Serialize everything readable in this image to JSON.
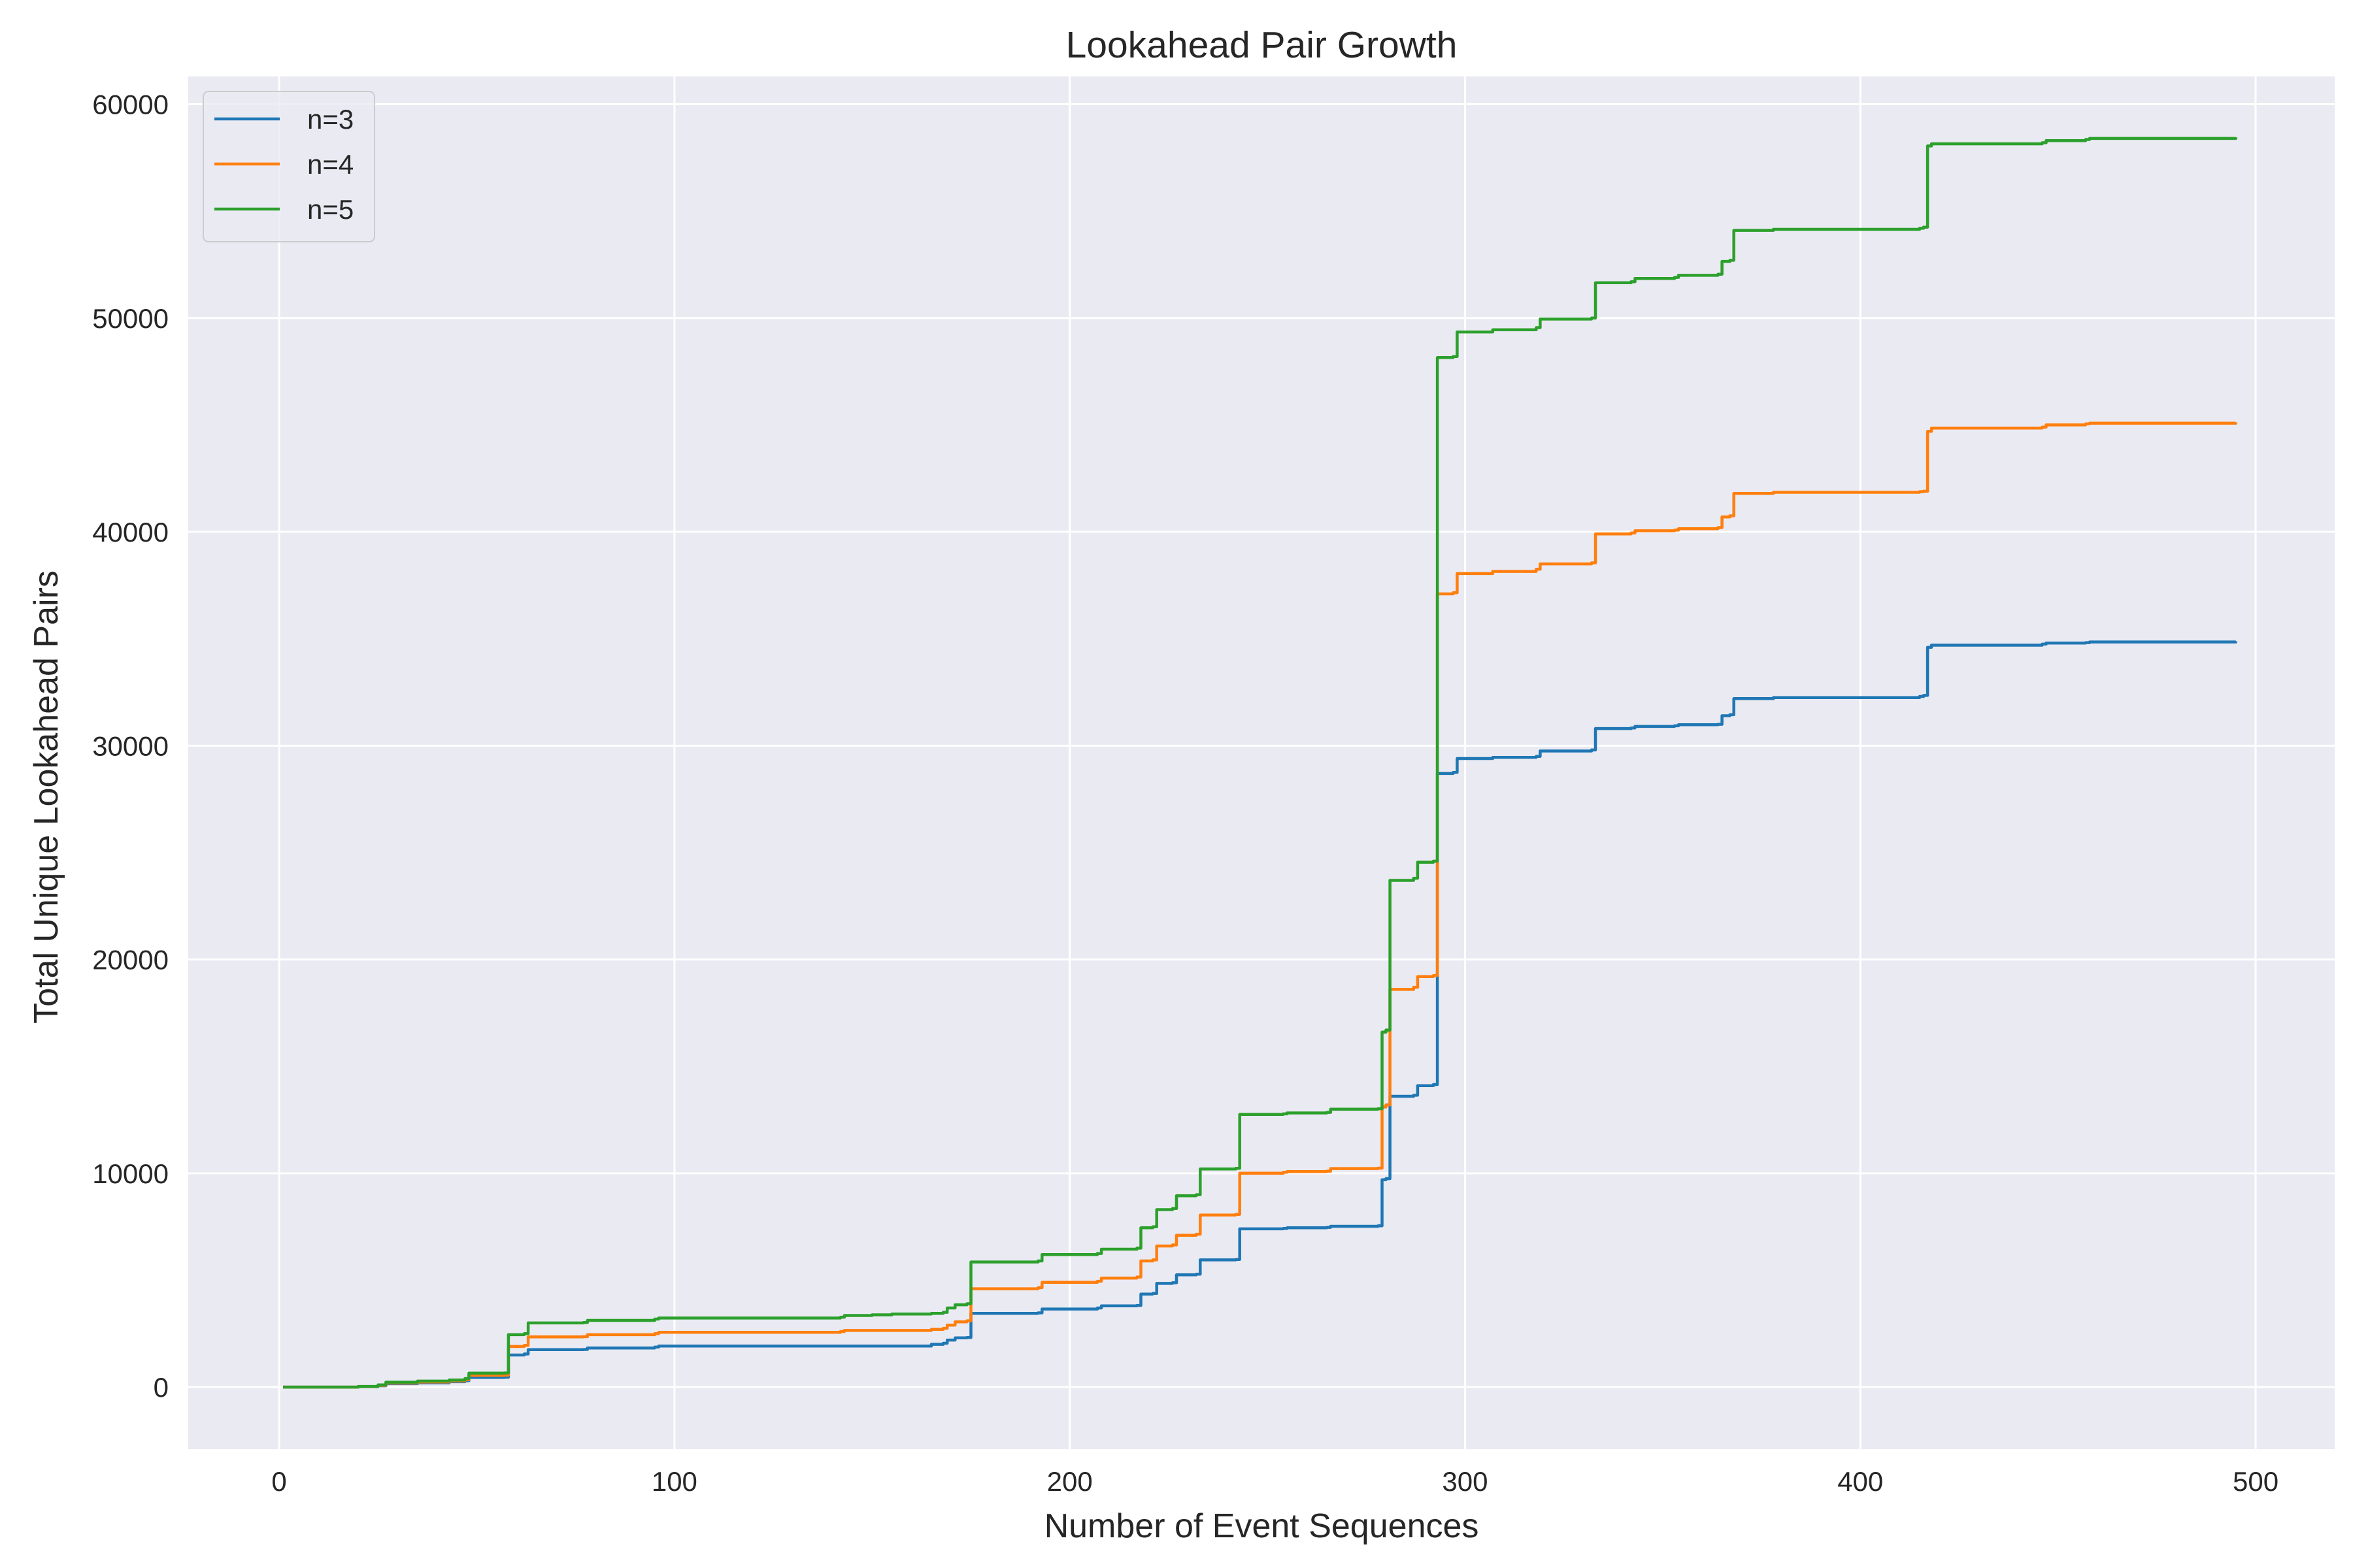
{
  "chart_data": {
    "type": "line",
    "title": "Lookahead Pair Growth",
    "xlabel": "Number of Event Sequences",
    "ylabel": "Total Unique Lookahead Pairs",
    "xlim": [
      -23,
      520
    ],
    "ylim": [
      -2900,
      61300
    ],
    "xticks": [
      0,
      100,
      200,
      300,
      400,
      500
    ],
    "yticks": [
      0,
      10000,
      20000,
      30000,
      40000,
      50000,
      60000
    ],
    "grid": true,
    "legend_position": "top-left",
    "colors": {
      "background": "#eaeaf2",
      "grid": "#ffffff"
    },
    "series": [
      {
        "name": "n=3",
        "color": "#1f77b4",
        "points": [
          [
            1,
            0
          ],
          [
            20,
            20
          ],
          [
            25,
            60
          ],
          [
            27,
            160
          ],
          [
            35,
            200
          ],
          [
            43,
            250
          ],
          [
            47,
            300
          ],
          [
            48,
            450
          ],
          [
            57,
            460
          ],
          [
            58,
            1500
          ],
          [
            62,
            1550
          ],
          [
            63,
            1750
          ],
          [
            77,
            1760
          ],
          [
            78,
            1830
          ],
          [
            95,
            1870
          ],
          [
            96,
            1920
          ],
          [
            165,
            2000
          ],
          [
            168,
            2050
          ],
          [
            169,
            2200
          ],
          [
            171,
            2300
          ],
          [
            174,
            2320
          ],
          [
            175,
            3450
          ],
          [
            192,
            3470
          ],
          [
            193,
            3650
          ],
          [
            207,
            3700
          ],
          [
            208,
            3800
          ],
          [
            217,
            3820
          ],
          [
            218,
            4350
          ],
          [
            221,
            4380
          ],
          [
            222,
            4850
          ],
          [
            226,
            4880
          ],
          [
            227,
            5250
          ],
          [
            232,
            5280
          ],
          [
            233,
            5950
          ],
          [
            242,
            5970
          ],
          [
            243,
            7400
          ],
          [
            254,
            7420
          ],
          [
            255,
            7450
          ],
          [
            265,
            7470
          ],
          [
            266,
            7520
          ],
          [
            278,
            7540
          ],
          [
            279,
            9700
          ],
          [
            280,
            9750
          ],
          [
            281,
            13600
          ],
          [
            287,
            13650
          ],
          [
            288,
            14100
          ],
          [
            292,
            14150
          ],
          [
            293,
            28700
          ],
          [
            297,
            28750
          ],
          [
            298,
            29400
          ],
          [
            307,
            29450
          ],
          [
            318,
            29500
          ],
          [
            319,
            29750
          ],
          [
            332,
            29800
          ],
          [
            333,
            30800
          ],
          [
            342,
            30830
          ],
          [
            343,
            30900
          ],
          [
            353,
            30930
          ],
          [
            354,
            30980
          ],
          [
            364,
            31000
          ],
          [
            365,
            31400
          ],
          [
            367,
            31450
          ],
          [
            368,
            32200
          ],
          [
            378,
            32250
          ],
          [
            415,
            32300
          ],
          [
            416,
            32350
          ],
          [
            417,
            34600
          ],
          [
            418,
            34700
          ],
          [
            446,
            34750
          ],
          [
            447,
            34800
          ],
          [
            457,
            34820
          ],
          [
            458,
            34850
          ],
          [
            495,
            34880
          ]
        ]
      },
      {
        "name": "n=4",
        "color": "#ff7f0e",
        "points": [
          [
            1,
            0
          ],
          [
            20,
            25
          ],
          [
            25,
            80
          ],
          [
            27,
            190
          ],
          [
            35,
            240
          ],
          [
            43,
            290
          ],
          [
            47,
            350
          ],
          [
            48,
            550
          ],
          [
            57,
            560
          ],
          [
            58,
            1900
          ],
          [
            62,
            1950
          ],
          [
            63,
            2350
          ],
          [
            77,
            2360
          ],
          [
            78,
            2450
          ],
          [
            95,
            2500
          ],
          [
            96,
            2560
          ],
          [
            142,
            2600
          ],
          [
            143,
            2650
          ],
          [
            165,
            2700
          ],
          [
            168,
            2750
          ],
          [
            169,
            2900
          ],
          [
            171,
            3050
          ],
          [
            174,
            3100
          ],
          [
            175,
            4600
          ],
          [
            192,
            4650
          ],
          [
            193,
            4900
          ],
          [
            207,
            4950
          ],
          [
            208,
            5100
          ],
          [
            217,
            5150
          ],
          [
            218,
            5900
          ],
          [
            221,
            5950
          ],
          [
            222,
            6600
          ],
          [
            226,
            6650
          ],
          [
            227,
            7100
          ],
          [
            232,
            7150
          ],
          [
            233,
            8050
          ],
          [
            242,
            8080
          ],
          [
            243,
            10000
          ],
          [
            254,
            10050
          ],
          [
            255,
            10080
          ],
          [
            265,
            10100
          ],
          [
            266,
            10220
          ],
          [
            278,
            10240
          ],
          [
            279,
            13100
          ],
          [
            280,
            13200
          ],
          [
            281,
            18600
          ],
          [
            287,
            18700
          ],
          [
            288,
            19200
          ],
          [
            292,
            19250
          ],
          [
            293,
            37100
          ],
          [
            297,
            37150
          ],
          [
            298,
            38050
          ],
          [
            307,
            38150
          ],
          [
            318,
            38250
          ],
          [
            319,
            38500
          ],
          [
            332,
            38550
          ],
          [
            333,
            39900
          ],
          [
            342,
            39950
          ],
          [
            343,
            40050
          ],
          [
            353,
            40080
          ],
          [
            354,
            40150
          ],
          [
            364,
            40200
          ],
          [
            365,
            40700
          ],
          [
            367,
            40750
          ],
          [
            368,
            41800
          ],
          [
            378,
            41850
          ],
          [
            415,
            41880
          ],
          [
            416,
            41900
          ],
          [
            417,
            44700
          ],
          [
            418,
            44850
          ],
          [
            446,
            44900
          ],
          [
            447,
            45000
          ],
          [
            457,
            45050
          ],
          [
            458,
            45080
          ],
          [
            495,
            45120
          ]
        ]
      },
      {
        "name": "n=5",
        "color": "#2ca02c",
        "points": [
          [
            1,
            0
          ],
          [
            20,
            30
          ],
          [
            25,
            100
          ],
          [
            27,
            230
          ],
          [
            35,
            280
          ],
          [
            43,
            330
          ],
          [
            47,
            400
          ],
          [
            48,
            650
          ],
          [
            57,
            660
          ],
          [
            58,
            2450
          ],
          [
            62,
            2500
          ],
          [
            63,
            3000
          ],
          [
            77,
            3020
          ],
          [
            78,
            3120
          ],
          [
            95,
            3180
          ],
          [
            96,
            3230
          ],
          [
            142,
            3270
          ],
          [
            143,
            3350
          ],
          [
            150,
            3380
          ],
          [
            155,
            3420
          ],
          [
            165,
            3450
          ],
          [
            168,
            3500
          ],
          [
            169,
            3700
          ],
          [
            171,
            3850
          ],
          [
            174,
            3900
          ],
          [
            175,
            5850
          ],
          [
            192,
            5900
          ],
          [
            193,
            6200
          ],
          [
            207,
            6250
          ],
          [
            208,
            6450
          ],
          [
            217,
            6500
          ],
          [
            218,
            7450
          ],
          [
            221,
            7500
          ],
          [
            222,
            8300
          ],
          [
            226,
            8350
          ],
          [
            227,
            8950
          ],
          [
            232,
            9000
          ],
          [
            233,
            10200
          ],
          [
            242,
            10230
          ],
          [
            243,
            12750
          ],
          [
            254,
            12780
          ],
          [
            255,
            12820
          ],
          [
            265,
            12850
          ],
          [
            266,
            13000
          ],
          [
            278,
            13020
          ],
          [
            279,
            16600
          ],
          [
            280,
            16700
          ],
          [
            281,
            23700
          ],
          [
            287,
            23800
          ],
          [
            288,
            24550
          ],
          [
            292,
            24600
          ],
          [
            293,
            48150
          ],
          [
            297,
            48200
          ],
          [
            298,
            49350
          ],
          [
            307,
            49450
          ],
          [
            318,
            49550
          ],
          [
            319,
            49950
          ],
          [
            332,
            50000
          ],
          [
            333,
            51650
          ],
          [
            342,
            51700
          ],
          [
            343,
            51850
          ],
          [
            353,
            51900
          ],
          [
            354,
            52000
          ],
          [
            364,
            52050
          ],
          [
            365,
            52650
          ],
          [
            367,
            52700
          ],
          [
            368,
            54100
          ],
          [
            378,
            54150
          ],
          [
            415,
            54200
          ],
          [
            416,
            54250
          ],
          [
            417,
            58050
          ],
          [
            418,
            58150
          ],
          [
            446,
            58200
          ],
          [
            447,
            58300
          ],
          [
            457,
            58350
          ],
          [
            458,
            58400
          ],
          [
            495,
            58450
          ]
        ]
      }
    ]
  }
}
